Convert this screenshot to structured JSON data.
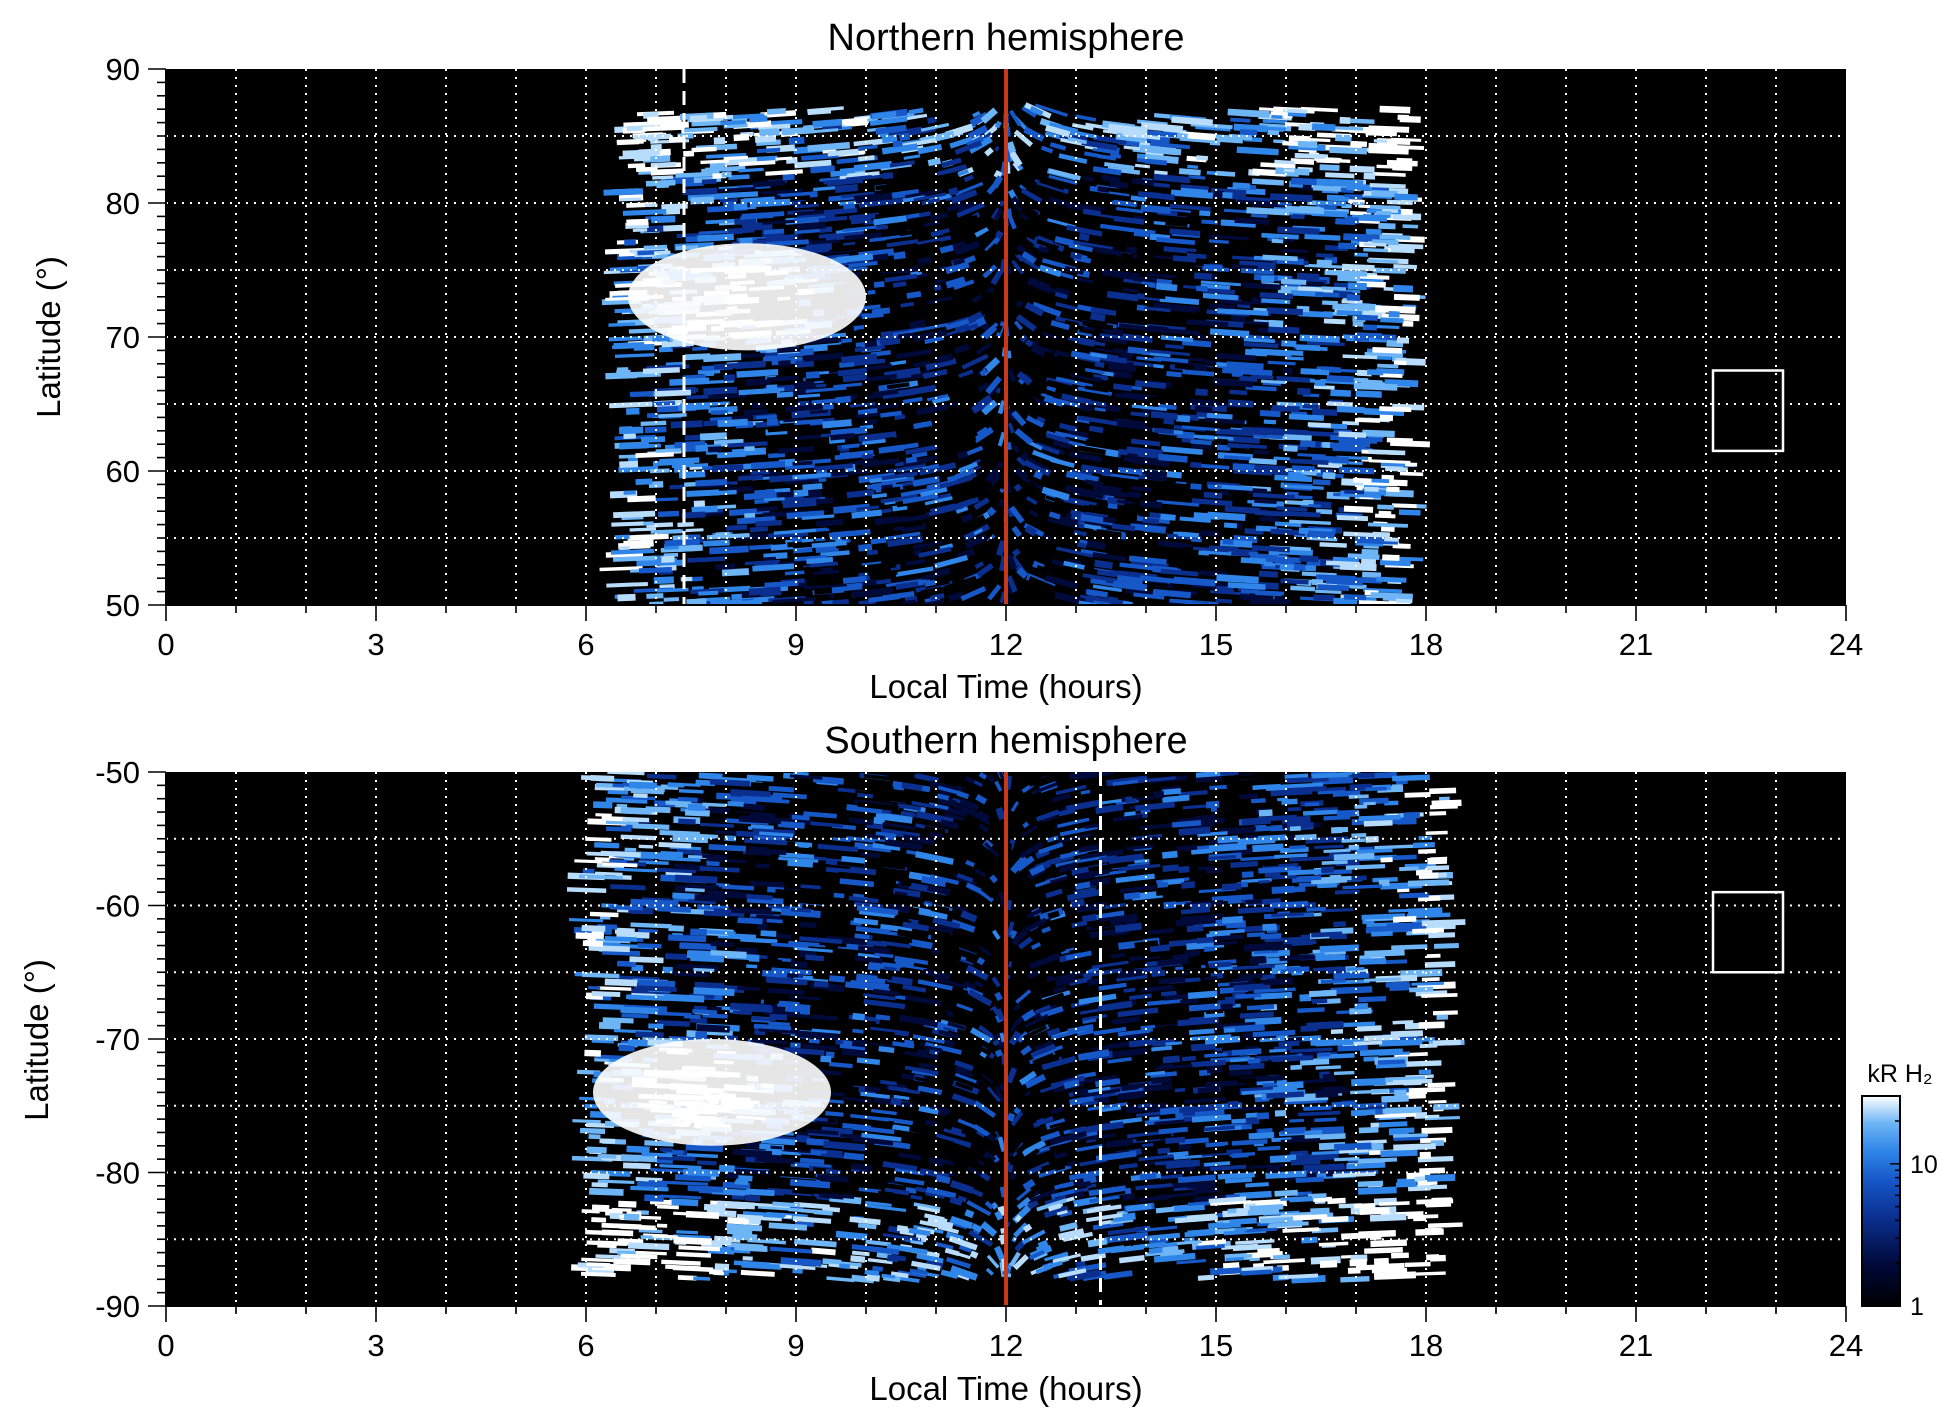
{
  "colors": {
    "background": "#000000",
    "noon_line": "#c8391a",
    "grid": "#ffffff",
    "colormap": [
      "#000000",
      "#000a3a",
      "#0a2f8f",
      "#1658c8",
      "#2f86e8",
      "#6db5f5",
      "#b8dcfb",
      "#ffffff"
    ]
  },
  "chart_data": [
    {
      "type": "heatmap",
      "title": "Northern hemisphere",
      "xlabel": "Local Time (hours)",
      "ylabel": "Latitude (°)",
      "xlim": [
        0,
        24
      ],
      "ylim": [
        50,
        90
      ],
      "xticks": [
        0,
        3,
        6,
        9,
        12,
        15,
        18,
        21,
        24
      ],
      "xtick_labels": [
        "0",
        "3",
        "6",
        "9",
        "12",
        "15",
        "18",
        "21",
        "24"
      ],
      "yticks": [
        50,
        60,
        70,
        80,
        90
      ],
      "ytick_labels": [
        "50",
        "60",
        "70",
        "80",
        "90"
      ],
      "grid": true,
      "grid_x_step": 1,
      "grid_y_step": 5,
      "markers": {
        "noon_line_lt": 12,
        "dashed_line_lt": 7.4,
        "box": {
          "lt": [
            22.1,
            23.1
          ],
          "lat": [
            61.5,
            67.5
          ]
        }
      },
      "emission_region": {
        "lt_range": [
          6.5,
          17.8
        ],
        "lat_range": [
          50,
          87
        ]
      },
      "bright_spot": {
        "lt": 8.3,
        "lat": 73,
        "value": "high"
      }
    },
    {
      "type": "heatmap",
      "title": "Southern hemisphere",
      "xlabel": "Local Time (hours)",
      "ylabel": "Latitude (°)",
      "xlim": [
        0,
        24
      ],
      "ylim": [
        -90,
        -50
      ],
      "xticks": [
        0,
        3,
        6,
        9,
        12,
        15,
        18,
        21,
        24
      ],
      "xtick_labels": [
        "0",
        "3",
        "6",
        "9",
        "12",
        "15",
        "18",
        "21",
        "24"
      ],
      "yticks": [
        -90,
        -80,
        -70,
        -60,
        -50
      ],
      "ytick_labels": [
        "-90",
        "-80",
        "-70",
        "-60",
        "-50"
      ],
      "grid": true,
      "grid_x_step": 1,
      "grid_y_step": 5,
      "markers": {
        "noon_line_lt": 12,
        "dashed_line_lt": 13.35,
        "box": {
          "lt": [
            22.1,
            23.1
          ],
          "lat": [
            -65,
            -59
          ]
        }
      },
      "emission_region": {
        "lt_range": [
          6.0,
          18.3
        ],
        "lat_range": [
          -88,
          -50
        ]
      },
      "bright_spot": {
        "lt": 7.8,
        "lat": -74,
        "value": "high"
      }
    }
  ],
  "colorbar": {
    "label": "kR H₂",
    "scale": "log",
    "range": [
      1,
      30
    ],
    "ticks": [
      1,
      10
    ],
    "tick_labels": [
      "1",
      "10"
    ]
  }
}
